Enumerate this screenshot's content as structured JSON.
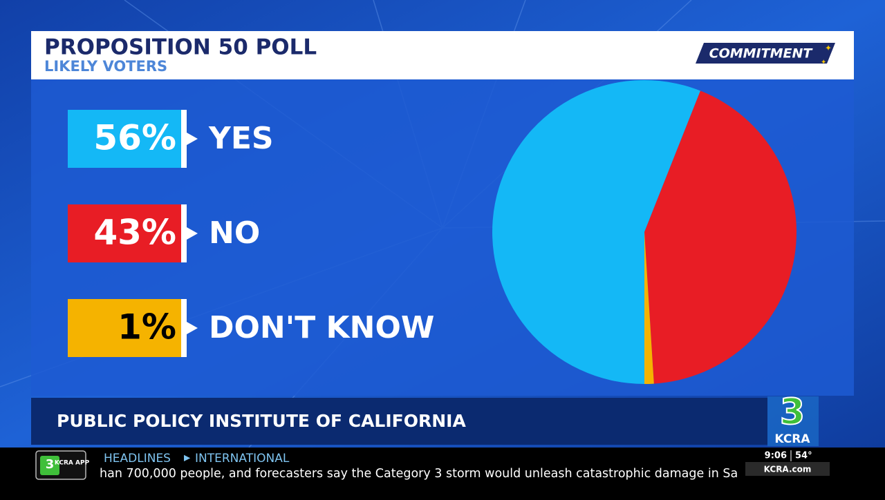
{
  "chart_data": {
    "type": "pie",
    "title": "PROPOSITION 50 POLL",
    "subtitle": "LIKELY VOTERS",
    "categories": [
      "YES",
      "NO",
      "DON'T KNOW"
    ],
    "values": [
      56,
      43,
      1
    ],
    "value_labels": [
      "56%",
      "43%",
      "1%"
    ],
    "colors": [
      "#14b8f6",
      "#e81d25",
      "#f5b300"
    ]
  },
  "brand": {
    "segment": "COMMITMENT",
    "station_number": "3",
    "station_name": "KCRA"
  },
  "source": "PUBLIC POLICY INSTITUTE OF CALIFORNIA",
  "ticker": {
    "app_badge_number": "3",
    "app_badge_text": "KCRA APP",
    "section": "HEADLINES",
    "subsection": "INTERNATIONAL",
    "text": "han 700,000 people, and forecasters say the Category 3 storm would unleash catastrophic damage in Sa",
    "time": "9:06",
    "temperature": "54°",
    "website": "KCRA.com"
  }
}
